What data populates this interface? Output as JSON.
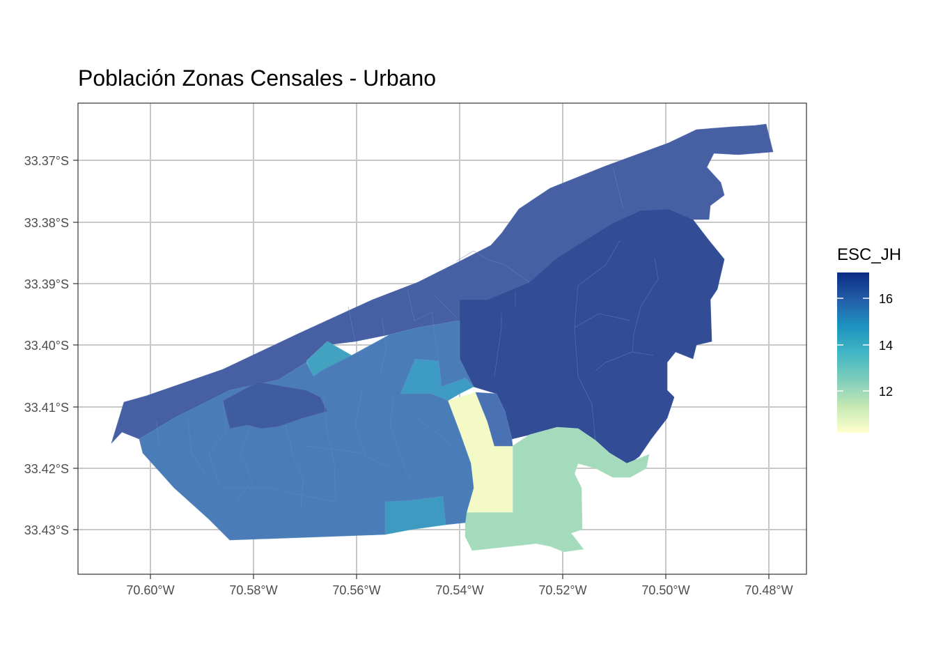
{
  "title": "Población Zonas Censales - Urbano",
  "chart_data": {
    "type": "choropleth",
    "title": "Población Zonas Censales - Urbano",
    "x_ticks": [
      "70.60°W",
      "70.58°W",
      "70.56°W",
      "70.54°W",
      "70.52°W",
      "70.50°W",
      "70.48°W"
    ],
    "y_ticks": [
      "33.37°S",
      "33.38°S",
      "33.39°S",
      "33.40°S",
      "33.41°S",
      "33.42°S",
      "33.43°S"
    ],
    "grid": true,
    "legend": {
      "title": "ESC_JH",
      "position": "right",
      "breaks": [
        12,
        14,
        16
      ],
      "labels": [
        "12",
        "14",
        "16"
      ],
      "range": [
        10.3,
        17.1
      ],
      "palette": [
        "#ffffcc",
        "#c7e9b4",
        "#7fcdbb",
        "#41b6c4",
        "#1d91c0",
        "#225ea8",
        "#0c2c84"
      ]
    },
    "zone_values": {
      "northwest_strip": 15.7,
      "northeast_strip": 15.7,
      "east_block": 16.2,
      "south_east_block": 16.1,
      "central_west_zones": 15.6,
      "central_zones": 15.3,
      "light_blue_zone_west": 14.3,
      "light_blue_zone_center": 14.6,
      "light_blue_zone_south": 14.5,
      "light_yellow_zone": 10.6,
      "light_green_zone": 12.3
    }
  }
}
